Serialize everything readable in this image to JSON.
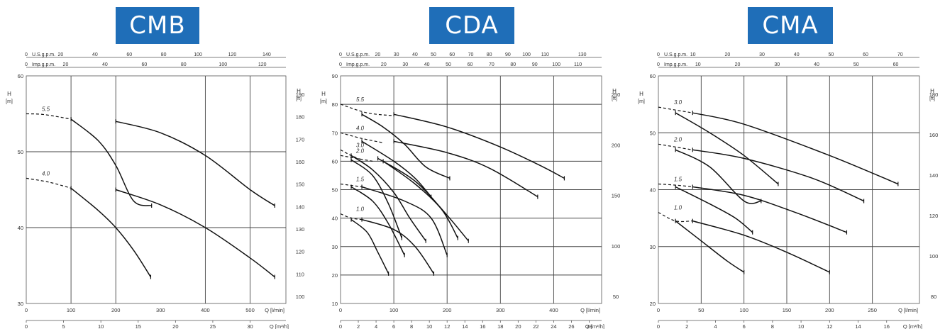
{
  "header": {
    "badges": [
      "CMB",
      "CDA",
      "CMA"
    ]
  },
  "chart_data": [
    {
      "type": "line",
      "title": "CMB",
      "ylabel": "H\n[m]",
      "ylabel_right": "H\n[ft]",
      "xlabel": "Q [l/min]",
      "xlabel2": "Q [m³/h]",
      "top_axis_1": "U.S.g.p.m.",
      "top_axis_2": "Imp.g.p.m.",
      "xlim": [
        0,
        580
      ],
      "ylim": [
        30,
        60
      ],
      "x_ticks": [
        0,
        100,
        200,
        300,
        400,
        500
      ],
      "x_tick_labels": [
        "0",
        "100",
        "200",
        "300",
        "400",
        "500"
      ],
      "y_ticks": [
        30,
        40,
        50,
        60
      ],
      "y_tick_labels": [
        "30",
        "40",
        "50",
        "60"
      ],
      "grid_x": [
        100,
        200,
        400,
        500
      ],
      "grid_y": [
        40,
        50
      ],
      "m3h_ticks": [
        0,
        5,
        10,
        15,
        20,
        25,
        30,
        34.8
      ],
      "m3h_labels": [
        "0",
        "5",
        "10",
        "15",
        "20",
        "25",
        "30",
        "Q [m³/h]"
      ],
      "ft_ticks": [
        100,
        110,
        120,
        130,
        140,
        150,
        160,
        170,
        180,
        190
      ],
      "ft_labels": [
        "100",
        "110",
        "120",
        "130",
        "140",
        "150",
        "160",
        "170",
        "180",
        "190"
      ],
      "us_ticks": [
        0,
        20,
        40,
        60,
        80,
        100,
        120,
        140
      ],
      "us_labels": [
        "0",
        "20",
        "40",
        "60",
        "80",
        "100",
        "120",
        "140"
      ],
      "imp_ticks": [
        0,
        20,
        40,
        60,
        80,
        100,
        120
      ],
      "imp_labels": [
        "0",
        "20",
        "40",
        "60",
        "80",
        "100",
        "120"
      ],
      "series": [
        {
          "name": "5.5",
          "dashed": [
            [
              0,
              55
            ],
            [
              40,
              54.9
            ],
            [
              100,
              54.3
            ]
          ],
          "curves": [
            [
              [
                100,
                54.3
              ],
              [
                160,
                51.5
              ],
              [
                200,
                48.2
              ],
              [
                240,
                43.5
              ],
              [
                280,
                42.9
              ]
            ],
            [
              [
                200,
                54
              ],
              [
                300,
                52.5
              ],
              [
                400,
                49.5
              ],
              [
                500,
                45
              ],
              [
                555,
                42.9
              ]
            ]
          ]
        },
        {
          "name": "4.0",
          "dashed": [
            [
              0,
              46.5
            ],
            [
              50,
              46
            ],
            [
              100,
              45.2
            ]
          ],
          "curves": [
            [
              [
                100,
                45.2
              ],
              [
                160,
                42.3
              ],
              [
                200,
                40
              ],
              [
                240,
                37
              ],
              [
                278,
                33.5
              ]
            ],
            [
              [
                200,
                45
              ],
              [
                300,
                43
              ],
              [
                400,
                40
              ],
              [
                500,
                36
              ],
              [
                555,
                33.5
              ]
            ]
          ]
        }
      ]
    },
    {
      "type": "line",
      "title": "CDA",
      "ylabel": "H\n[m]",
      "ylabel_right": "H\n[ft]",
      "xlabel": "Q [l/min]",
      "xlabel2": "Q [m³/h]",
      "top_axis_1": "U.S.g.p.m.",
      "top_axis_2": "Imp.g.p.m.",
      "xlim": [
        0,
        490
      ],
      "ylim": [
        10,
        90
      ],
      "x_ticks": [
        0,
        100,
        200,
        300,
        400
      ],
      "x_tick_labels": [
        "0",
        "100",
        "200",
        "300",
        "400"
      ],
      "y_ticks": [
        10,
        20,
        30,
        40,
        50,
        60,
        70,
        80,
        90
      ],
      "y_tick_labels": [
        "10",
        "20",
        "30",
        "40",
        "50",
        "60",
        "70",
        "80",
        "90"
      ],
      "grid_x": [
        100,
        200,
        300,
        400
      ],
      "grid_y": [
        20,
        30,
        40,
        50,
        60,
        70,
        80
      ],
      "m3h_ticks": [
        0,
        2,
        4,
        6,
        8,
        10,
        12,
        14,
        16,
        18,
        20,
        22,
        24,
        26,
        28,
        29.4
      ],
      "m3h_labels": [
        "0",
        "2",
        "4",
        "6",
        "8",
        "10",
        "12",
        "14",
        "16",
        "18",
        "20",
        "22",
        "24",
        "26",
        "28",
        "Q [m³/h]"
      ],
      "ft_ticks": [
        50,
        100,
        150,
        200,
        250
      ],
      "ft_labels": [
        "50",
        "100",
        "150",
        "200",
        "250"
      ],
      "us_ticks": [
        0,
        20,
        30,
        40,
        50,
        60,
        70,
        80,
        90,
        100,
        110,
        130
      ],
      "us_labels": [
        "0",
        "20",
        "30",
        "40",
        "50",
        "60",
        "70",
        "80",
        "90",
        "100",
        "110",
        "130"
      ],
      "imp_ticks": [
        0,
        20,
        30,
        40,
        50,
        60,
        70,
        80,
        90,
        100,
        110
      ],
      "imp_labels": [
        "0",
        "20",
        "30",
        "40",
        "50",
        "60",
        "70",
        "80",
        "90",
        "100",
        "110"
      ],
      "series": [
        {
          "name": "5.5",
          "dashed": [
            [
              0,
              80
            ],
            [
              50,
              77
            ],
            [
              100,
              76
            ]
          ],
          "curves": [
            [
              [
                40,
                76.5
              ],
              [
                80,
                72
              ],
              [
                120,
                66
              ],
              [
                160,
                58
              ],
              [
                205,
                54
              ]
            ],
            [
              [
                100,
                76.5
              ],
              [
                200,
                72
              ],
              [
                300,
                65
              ],
              [
                380,
                58
              ],
              [
                420,
                54
              ]
            ]
          ]
        },
        {
          "name": "4.0",
          "dashed": [
            [
              0,
              70
            ],
            [
              40,
              68
            ],
            [
              80,
              66.5
            ]
          ],
          "curves": [
            [
              [
                40,
                67
              ],
              [
                100,
                60
              ],
              [
                140,
                54
              ],
              [
                170,
                47.5
              ]
            ],
            [
              [
                100,
                67
              ],
              [
                200,
                63
              ],
              [
                280,
                57.5
              ],
              [
                370,
                47.5
              ]
            ]
          ]
        },
        {
          "name": "3.0",
          "dashed": [
            [
              0,
              64
            ],
            [
              20,
              62
            ],
            [
              40,
              60.5
            ]
          ],
          "curves": [
            [
              [
                20,
                62
              ],
              [
                60,
                57
              ],
              [
                100,
                49
              ],
              [
                130,
                40
              ],
              [
                160,
                32
              ]
            ],
            [
              [
                70,
                61
              ],
              [
                140,
                53
              ],
              [
                200,
                41
              ],
              [
                240,
                32
              ]
            ]
          ]
        },
        {
          "name": "2.0",
          "dashed": [
            [
              0,
              62
            ],
            [
              30,
              61
            ],
            [
              60,
              60
            ]
          ],
          "curves": [
            [
              [
                20,
                60.5
              ],
              [
                60,
                55
              ],
              [
                90,
                45
              ],
              [
                115,
                33
              ]
            ],
            [
              [
                80,
                60
              ],
              [
                140,
                52
              ],
              [
                190,
                43
              ],
              [
                220,
                33
              ]
            ]
          ]
        },
        {
          "name": "1.5",
          "dashed": [
            [
              0,
              52
            ],
            [
              20,
              51.5
            ],
            [
              40,
              51
            ]
          ],
          "curves": [
            [
              [
                20,
                51
              ],
              [
                60,
                46
              ],
              [
                90,
                38
              ],
              [
                120,
                27
              ]
            ],
            [
              [
                40,
                51
              ],
              [
                120,
                46
              ],
              [
                170,
                40
              ],
              [
                200,
                27
              ]
            ]
          ]
        },
        {
          "name": "1.0",
          "dashed": [
            [
              0,
              41.5
            ],
            [
              20,
              40
            ],
            [
              40,
              39.5
            ]
          ],
          "curves": [
            [
              [
                20,
                39.5
              ],
              [
                50,
                35
              ],
              [
                70,
                28
              ],
              [
                90,
                20.5
              ]
            ],
            [
              [
                40,
                39.5
              ],
              [
                100,
                36
              ],
              [
                140,
                30
              ],
              [
                175,
                20.5
              ]
            ]
          ]
        }
      ]
    },
    {
      "type": "line",
      "title": "CMA",
      "ylabel": "H\n[m]",
      "ylabel_right": "H\n[ft]",
      "xlabel": "Q [l/min]",
      "xlabel2": "Q [m³/h]",
      "top_axis_1": "U.S.g.p.m.",
      "top_axis_2": "Imp.g.p.m.",
      "xlim": [
        0,
        305
      ],
      "ylim": [
        20,
        60
      ],
      "x_ticks": [
        0,
        50,
        100,
        150,
        200,
        250
      ],
      "x_tick_labels": [
        "0",
        "50",
        "100",
        "150",
        "200",
        "250"
      ],
      "y_ticks": [
        20,
        30,
        40,
        50,
        60
      ],
      "y_tick_labels": [
        "20",
        "30",
        "40",
        "50",
        "60"
      ],
      "grid_x": [
        50,
        100,
        150,
        200,
        250
      ],
      "grid_y": [
        30,
        40,
        50
      ],
      "m3h_ticks": [
        0,
        2,
        4,
        6,
        8,
        10,
        12,
        14,
        16,
        18,
        18.3
      ],
      "m3h_labels": [
        "0",
        "2",
        "4",
        "6",
        "8",
        "10",
        "12",
        "14",
        "16",
        "Q [m³/h]",
        ""
      ],
      "ft_ticks": [
        80,
        100,
        120,
        140,
        160,
        180
      ],
      "ft_labels": [
        "80",
        "100",
        "120",
        "140",
        "160",
        "180"
      ],
      "us_ticks": [
        0,
        10,
        20,
        30,
        40,
        50,
        60,
        70
      ],
      "us_labels": [
        "0",
        "10",
        "20",
        "30",
        "40",
        "50",
        "60",
        "70"
      ],
      "imp_ticks": [
        0,
        10,
        20,
        30,
        40,
        50,
        60
      ],
      "imp_labels": [
        "0",
        "10",
        "20",
        "30",
        "40",
        "50",
        "60"
      ],
      "series": [
        {
          "name": "3.0",
          "dashed": [
            [
              0,
              54.5
            ],
            [
              20,
              54
            ],
            [
              40,
              53.5
            ]
          ],
          "curves": [
            [
              [
                20,
                53.5
              ],
              [
                60,
                50
              ],
              [
                100,
                46
              ],
              [
                140,
                41
              ]
            ],
            [
              [
                40,
                53.5
              ],
              [
                100,
                51.5
              ],
              [
                200,
                46
              ],
              [
                280,
                41
              ]
            ]
          ]
        },
        {
          "name": "2.0",
          "dashed": [
            [
              0,
              48
            ],
            [
              20,
              47.5
            ],
            [
              40,
              47
            ]
          ],
          "curves": [
            [
              [
                20,
                47
              ],
              [
                60,
                44
              ],
              [
                100,
                38
              ],
              [
                120,
                38
              ]
            ],
            [
              [
                40,
                47
              ],
              [
                100,
                45.5
              ],
              [
                180,
                42
              ],
              [
                240,
                38
              ]
            ]
          ]
        },
        {
          "name": "1.5",
          "dashed": [
            [
              0,
              41
            ],
            [
              20,
              40.8
            ],
            [
              40,
              40.5
            ]
          ],
          "curves": [
            [
              [
                20,
                40.5
              ],
              [
                60,
                37.5
              ],
              [
                90,
                35
              ],
              [
                110,
                32.5
              ]
            ],
            [
              [
                40,
                40.5
              ],
              [
                100,
                39
              ],
              [
                160,
                36
              ],
              [
                220,
                32.5
              ]
            ]
          ]
        },
        {
          "name": "1.0",
          "dashed": [
            [
              0,
              36
            ],
            [
              20,
              34.5
            ],
            [
              40,
              34.5
            ]
          ],
          "curves": [
            [
              [
                20,
                34.5
              ],
              [
                50,
                31
              ],
              [
                80,
                27.5
              ],
              [
                100,
                25.5
              ]
            ],
            [
              [
                40,
                34.5
              ],
              [
                100,
                32
              ],
              [
                150,
                29
              ],
              [
                200,
                25.5
              ]
            ]
          ]
        }
      ]
    }
  ]
}
